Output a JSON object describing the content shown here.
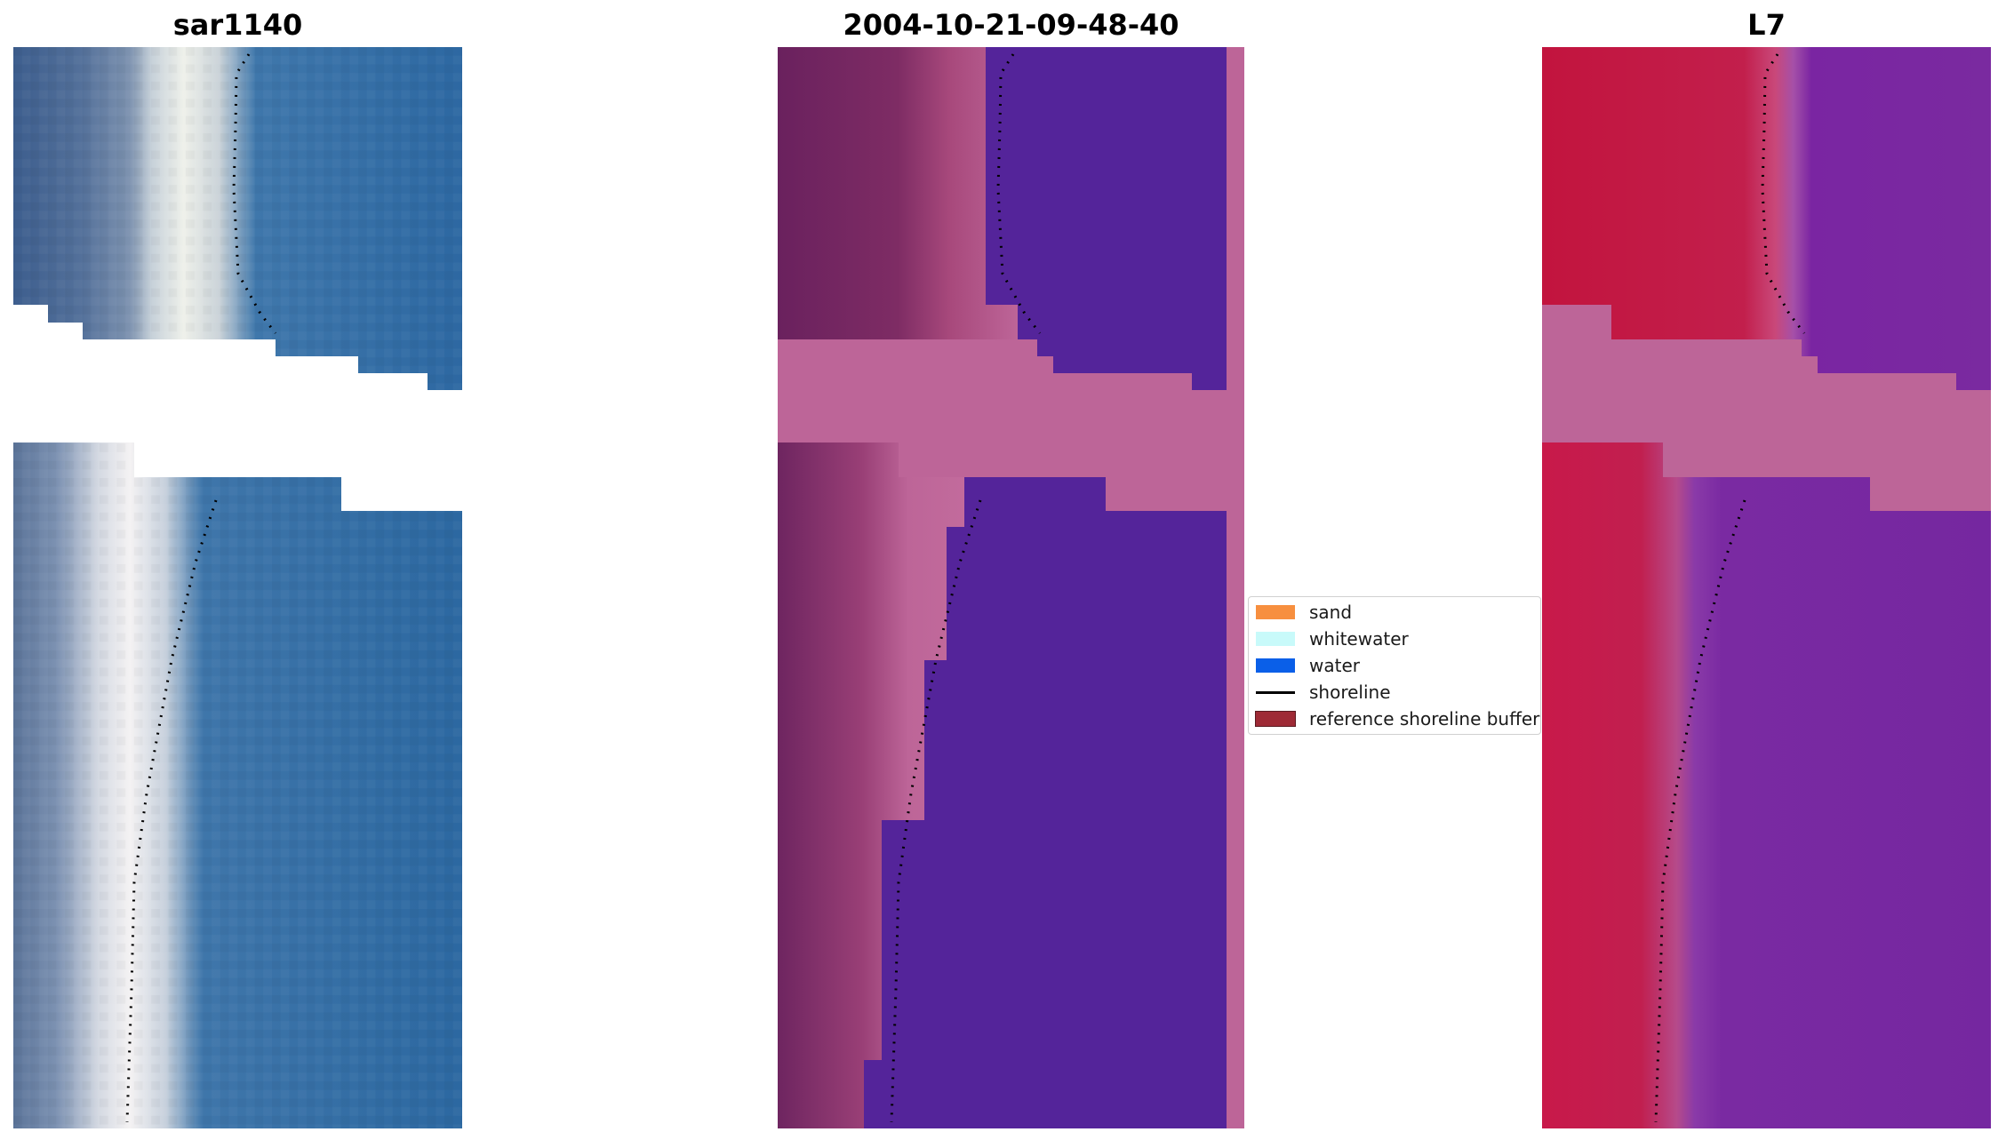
{
  "panels": [
    {
      "title": "sar1140",
      "kind": "rgb"
    },
    {
      "title": "2004-10-21-09-48-40",
      "kind": "classified"
    },
    {
      "title": "L7",
      "kind": "mndwi"
    }
  ],
  "legend": {
    "items": [
      {
        "label": "sand",
        "color": "#f78f3f",
        "type": "patch"
      },
      {
        "label": "whitewater",
        "color": "#c8fafa",
        "type": "patch"
      },
      {
        "label": "water",
        "color": "#0a5fe8",
        "type": "patch"
      },
      {
        "label": "shoreline",
        "color": "#000000",
        "type": "line"
      },
      {
        "label": "reference shoreline buffer",
        "color": "#9e2a35",
        "type": "patch"
      }
    ]
  },
  "colors": {
    "ocean_blue": "#2e67a3",
    "whitewater_white": "#e9eef2",
    "classified_water": "#54249a",
    "classified_sand": "#7a2a62",
    "buffer_pink": "#bd6598",
    "index_land": "#c41e48",
    "index_water": "#7a2aa0"
  }
}
